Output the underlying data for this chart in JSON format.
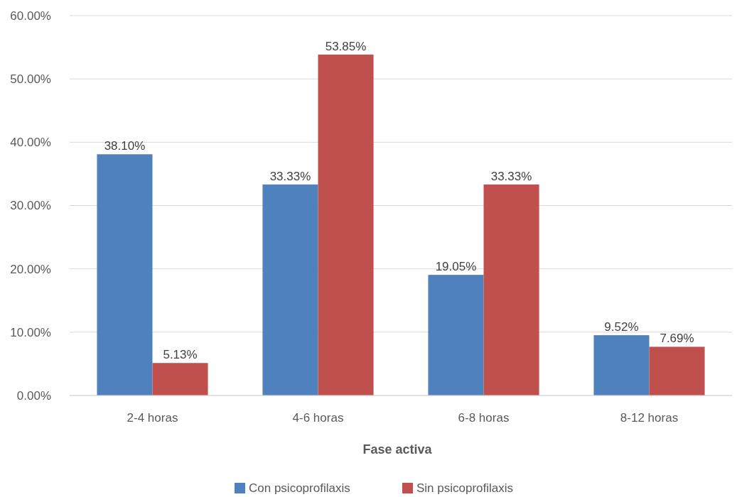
{
  "chart_data": {
    "type": "bar",
    "xlabel": "Fase activa",
    "categories": [
      "2-4 horas",
      "4-6 horas",
      "6-8 horas",
      "8-12 horas"
    ],
    "series": [
      {
        "name": "Con psicoprofilaxis",
        "color": "#4f81bd",
        "values": [
          38.1,
          33.33,
          19.05,
          9.52
        ],
        "value_labels": [
          "38.10%",
          "33.33%",
          "19.05%",
          "9.52%"
        ]
      },
      {
        "name": "Sin psicoprofilaxis",
        "color": "#c0504d",
        "values": [
          5.13,
          53.85,
          33.33,
          7.69
        ],
        "value_labels": [
          "5.13%",
          "53.85%",
          "33.33%",
          "7.69%"
        ]
      }
    ],
    "ylim": [
      0,
      60
    ],
    "yticks": [
      {
        "value": 0,
        "label": "0.00%"
      },
      {
        "value": 10,
        "label": "10.00%"
      },
      {
        "value": 20,
        "label": "20.00%"
      },
      {
        "value": 30,
        "label": "30.00%"
      },
      {
        "value": 40,
        "label": "40.00%"
      },
      {
        "value": 50,
        "label": "50.00%"
      },
      {
        "value": 60,
        "label": "60.00%"
      }
    ],
    "grid": "y",
    "legend": "bottom"
  }
}
